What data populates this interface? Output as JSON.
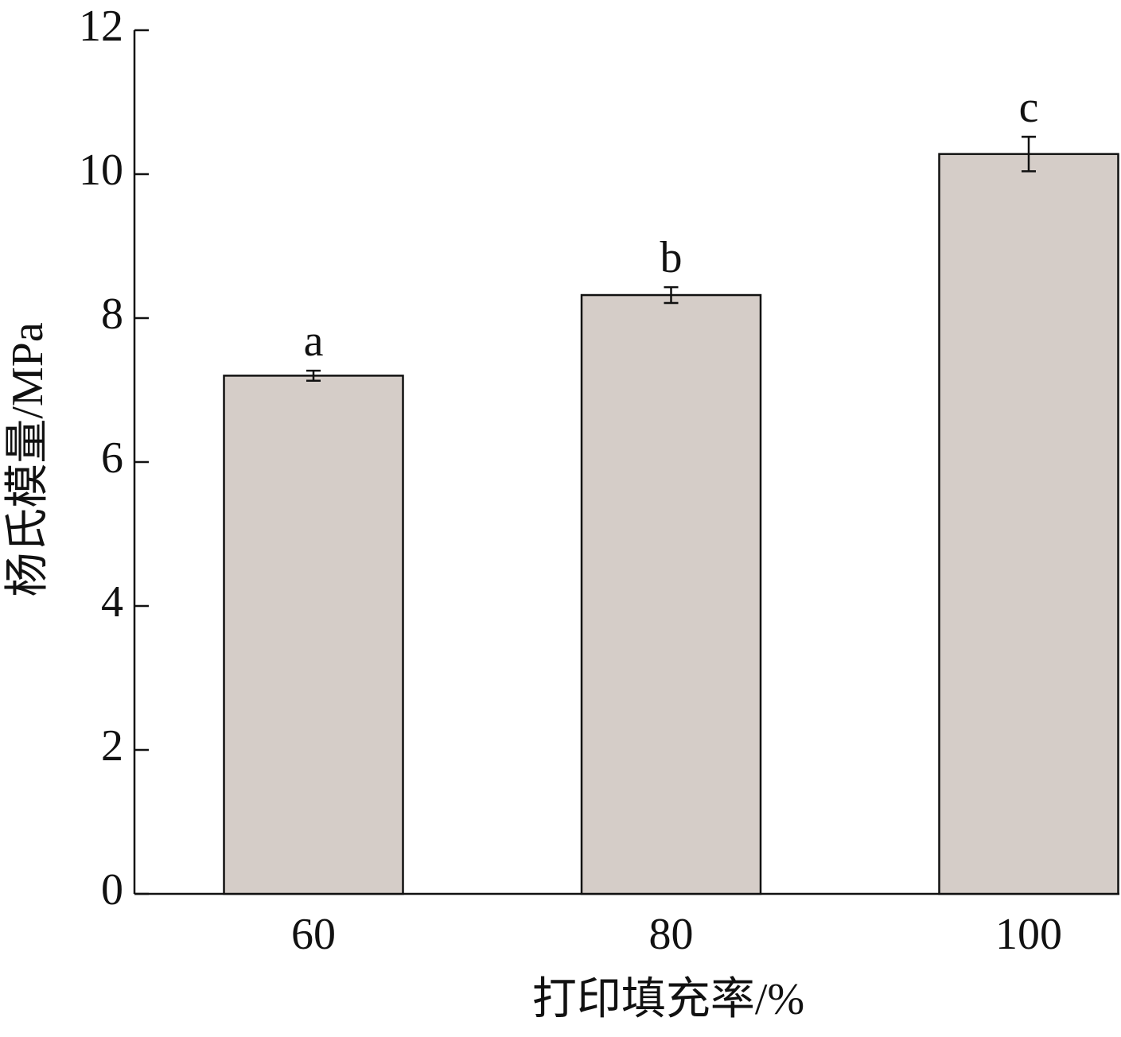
{
  "chart_data": {
    "type": "bar",
    "x_label": "打印填充率/%",
    "y_label": "杨氏模量/MPa",
    "categories": [
      "60",
      "80",
      "100"
    ],
    "values": [
      7.2,
      8.32,
      10.28
    ],
    "errors": [
      0.07,
      0.11,
      0.24
    ],
    "annotations": [
      "a",
      "b",
      "c"
    ],
    "color": "#d5cdc8",
    "ylim": [
      0,
      12
    ],
    "yticks": [
      0,
      2,
      4,
      6,
      8,
      10,
      12
    ],
    "grid": false
  }
}
